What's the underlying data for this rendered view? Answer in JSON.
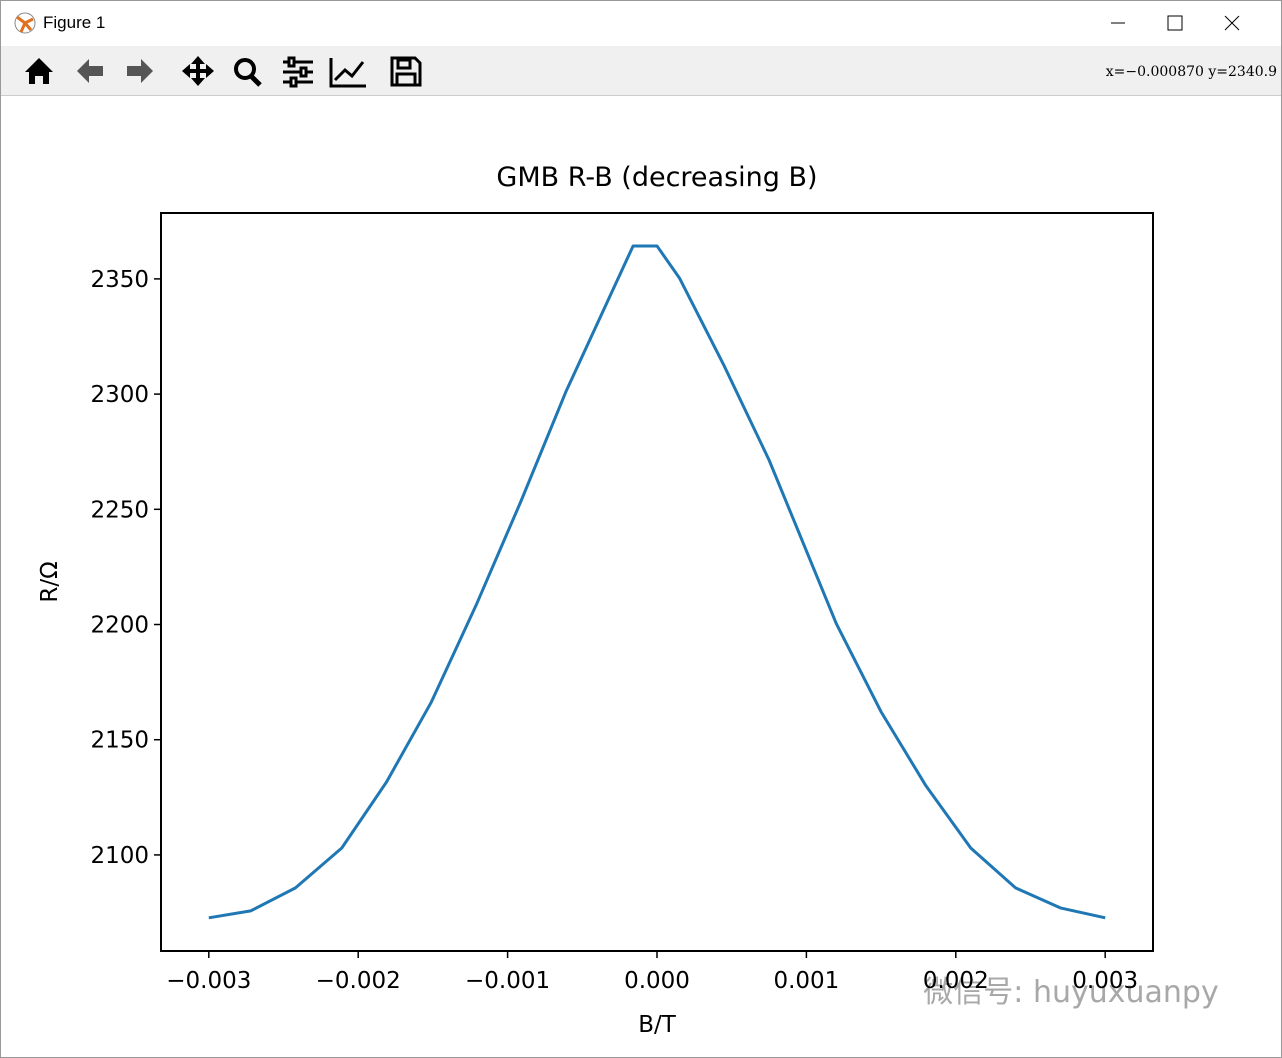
{
  "window": {
    "title": "Figure 1"
  },
  "toolbar": {
    "coordinates": "x=−0.000870 y=2340.9"
  },
  "watermark": "微信号: huyuxuanpy",
  "chart_data": {
    "type": "line",
    "title": "GMB R-B (decreasing B)",
    "xlabel": "B/T",
    "ylabel": "R/Ω",
    "x": [
      -0.003,
      -0.00272,
      -0.00242,
      -0.00211,
      -0.00181,
      -0.00151,
      -0.00121,
      -0.00091,
      -0.00061,
      -0.00016,
      0.0,
      0.00015,
      0.00045,
      0.00075,
      0.0012,
      0.0015,
      0.0018,
      0.0021,
      0.0024,
      0.0027,
      0.003
    ],
    "values": [
      2072.7,
      2075.7,
      2085.7,
      2103.0,
      2131.7,
      2166.4,
      2208.5,
      2253.6,
      2301.0,
      2364.3,
      2364.3,
      2350.4,
      2312.2,
      2271.4,
      2200.4,
      2162.1,
      2130.0,
      2103.0,
      2085.7,
      2077.0,
      2072.7
    ],
    "color": "#1f77b4",
    "xlim": [
      -0.00332,
      0.00332
    ],
    "ylim": [
      2058.3,
      2378.6
    ],
    "xticks": [
      {
        "value": -0.003,
        "label": "−0.003"
      },
      {
        "value": -0.002,
        "label": "−0.002"
      },
      {
        "value": -0.001,
        "label": "−0.001"
      },
      {
        "value": 0,
        "label": "0.000"
      },
      0.001,
      0.002,
      0.003
    ],
    "yticks": [
      2100,
      2150,
      2200,
      2250,
      2300,
      2350
    ]
  }
}
